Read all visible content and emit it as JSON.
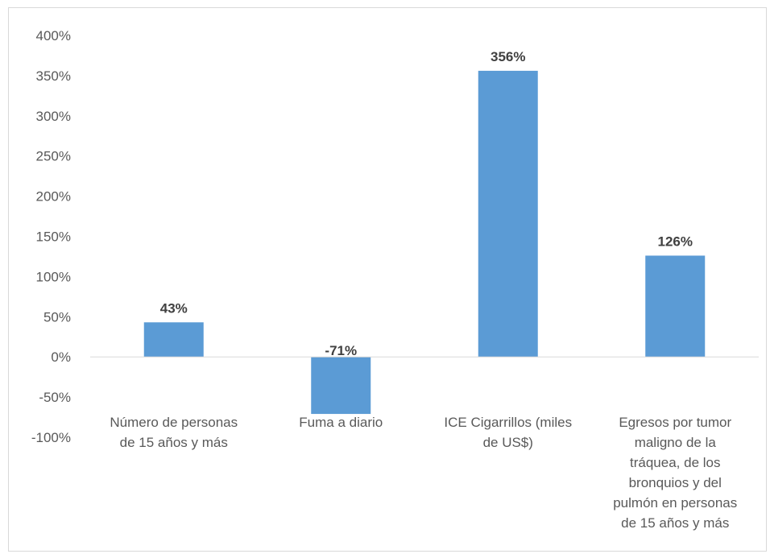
{
  "chart_data": {
    "type": "bar",
    "title": "",
    "xlabel": "",
    "ylabel": "",
    "ylim": [
      -100,
      400
    ],
    "yticks": [
      400,
      350,
      300,
      250,
      200,
      150,
      100,
      50,
      0,
      -50,
      -100
    ],
    "tick_suffix": "%",
    "grid": false,
    "legend": "none",
    "bar_color": "#5b9bd5",
    "categories": [
      [
        "Número de personas",
        "de 15 años y más"
      ],
      [
        "Fuma a diario"
      ],
      [
        "ICE Cigarrillos (miles",
        "de US$)"
      ],
      [
        "Egresos por tumor",
        "maligno de la",
        "tráquea, de los",
        "bronquios y del",
        "pulmón en personas",
        "de 15 años y más"
      ]
    ],
    "values": [
      43,
      -71,
      356,
      126
    ],
    "data_labels": [
      "43%",
      "-71%",
      "356%",
      "126%"
    ]
  }
}
